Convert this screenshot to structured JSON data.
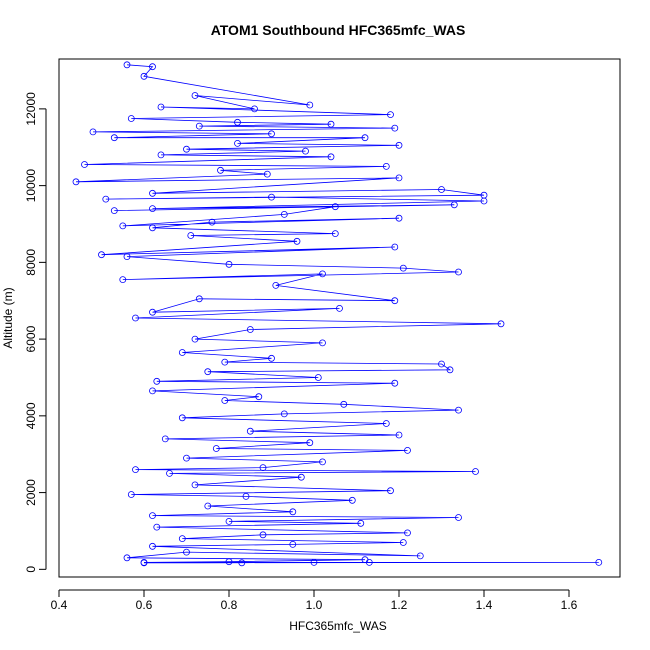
{
  "chart_data": {
    "type": "line",
    "title": "ATOM1 Southbound HFC365mfc_WAS",
    "xlabel": "HFC365mfc_WAS",
    "ylabel": "Altitude (m)",
    "xlim": [
      0.4,
      1.72
    ],
    "ylim": [
      -200,
      13300
    ],
    "x_ticks": [
      0.4,
      0.6,
      0.8,
      1.0,
      1.2,
      1.4,
      1.6
    ],
    "x_tick_labels": [
      "0.4",
      "0.6",
      "0.8",
      "1.0",
      "1.2",
      "1.4",
      "1.6"
    ],
    "y_ticks": [
      0,
      2000,
      4000,
      6000,
      8000,
      10000,
      12000
    ],
    "y_tick_labels": [
      "0",
      "2000",
      "4000",
      "6000",
      "8000",
      "10000",
      "12000"
    ],
    "grid": false,
    "legend": "none",
    "marker": "open-circle",
    "series_color": "#0000ff",
    "series": [
      {
        "values": [
          [
            0.56,
            13150
          ],
          [
            0.62,
            13100
          ],
          [
            0.6,
            12850
          ],
          [
            0.99,
            12100
          ],
          [
            0.72,
            12350
          ],
          [
            0.86,
            12000
          ],
          [
            0.64,
            12050
          ],
          [
            1.18,
            11850
          ],
          [
            0.57,
            11750
          ],
          [
            0.82,
            11650
          ],
          [
            1.04,
            11600
          ],
          [
            0.73,
            11550
          ],
          [
            1.19,
            11500
          ],
          [
            0.48,
            11400
          ],
          [
            0.9,
            11350
          ],
          [
            0.53,
            11250
          ],
          [
            1.12,
            11250
          ],
          [
            0.82,
            11100
          ],
          [
            1.2,
            11050
          ],
          [
            0.7,
            10950
          ],
          [
            0.98,
            10900
          ],
          [
            0.64,
            10800
          ],
          [
            1.04,
            10750
          ],
          [
            0.46,
            10550
          ],
          [
            1.17,
            10500
          ],
          [
            0.78,
            10400
          ],
          [
            0.89,
            10300
          ],
          [
            0.44,
            10100
          ],
          [
            1.2,
            10200
          ],
          [
            0.62,
            9800
          ],
          [
            1.3,
            9900
          ],
          [
            1.4,
            9750
          ],
          [
            0.51,
            9650
          ],
          [
            0.9,
            9700
          ],
          [
            1.4,
            9600
          ],
          [
            0.62,
            9400
          ],
          [
            1.33,
            9500
          ],
          [
            0.53,
            9350
          ],
          [
            1.05,
            9450
          ],
          [
            0.93,
            9250
          ],
          [
            0.55,
            8950
          ],
          [
            1.2,
            9150
          ],
          [
            0.76,
            9050
          ],
          [
            0.62,
            8900
          ],
          [
            1.05,
            8750
          ],
          [
            0.71,
            8700
          ],
          [
            0.96,
            8550
          ],
          [
            0.5,
            8200
          ],
          [
            1.19,
            8400
          ],
          [
            0.56,
            8150
          ],
          [
            0.8,
            7950
          ],
          [
            1.21,
            7850
          ],
          [
            1.34,
            7750
          ],
          [
            0.55,
            7550
          ],
          [
            1.02,
            7700
          ],
          [
            0.91,
            7400
          ],
          [
            1.19,
            7000
          ],
          [
            0.73,
            7050
          ],
          [
            0.62,
            6700
          ],
          [
            1.06,
            6800
          ],
          [
            0.58,
            6550
          ],
          [
            1.44,
            6400
          ],
          [
            0.85,
            6250
          ],
          [
            0.72,
            6000
          ],
          [
            1.02,
            5900
          ],
          [
            0.69,
            5650
          ],
          [
            0.9,
            5500
          ],
          [
            0.79,
            5400
          ],
          [
            1.3,
            5350
          ],
          [
            1.32,
            5200
          ],
          [
            0.75,
            5150
          ],
          [
            1.01,
            5000
          ],
          [
            0.63,
            4900
          ],
          [
            1.19,
            4850
          ],
          [
            0.62,
            4650
          ],
          [
            0.87,
            4500
          ],
          [
            0.79,
            4400
          ],
          [
            1.07,
            4300
          ],
          [
            1.34,
            4150
          ],
          [
            0.93,
            4050
          ],
          [
            0.69,
            3950
          ],
          [
            1.17,
            3800
          ],
          [
            0.85,
            3600
          ],
          [
            1.2,
            3500
          ],
          [
            0.65,
            3400
          ],
          [
            0.99,
            3300
          ],
          [
            0.77,
            3150
          ],
          [
            1.22,
            3100
          ],
          [
            0.7,
            2900
          ],
          [
            1.02,
            2800
          ],
          [
            0.88,
            2650
          ],
          [
            0.58,
            2600
          ],
          [
            1.38,
            2550
          ],
          [
            0.66,
            2500
          ],
          [
            0.97,
            2400
          ],
          [
            0.72,
            2200
          ],
          [
            1.18,
            2050
          ],
          [
            0.57,
            1950
          ],
          [
            0.84,
            1900
          ],
          [
            1.09,
            1800
          ],
          [
            0.75,
            1650
          ],
          [
            0.95,
            1500
          ],
          [
            0.62,
            1400
          ],
          [
            1.34,
            1350
          ],
          [
            0.8,
            1250
          ],
          [
            1.11,
            1200
          ],
          [
            0.63,
            1100
          ],
          [
            1.22,
            950
          ],
          [
            0.88,
            900
          ],
          [
            0.69,
            800
          ],
          [
            1.21,
            700
          ],
          [
            0.95,
            650
          ],
          [
            0.62,
            600
          ],
          [
            1.25,
            350
          ],
          [
            0.7,
            450
          ],
          [
            0.56,
            300
          ],
          [
            1.12,
            250
          ],
          [
            0.8,
            200
          ],
          [
            0.6,
            180
          ],
          [
            1.0,
            180
          ],
          [
            1.67,
            180
          ],
          [
            0.83,
            170
          ],
          [
            0.6,
            170
          ],
          [
            1.13,
            180
          ]
        ]
      }
    ]
  }
}
